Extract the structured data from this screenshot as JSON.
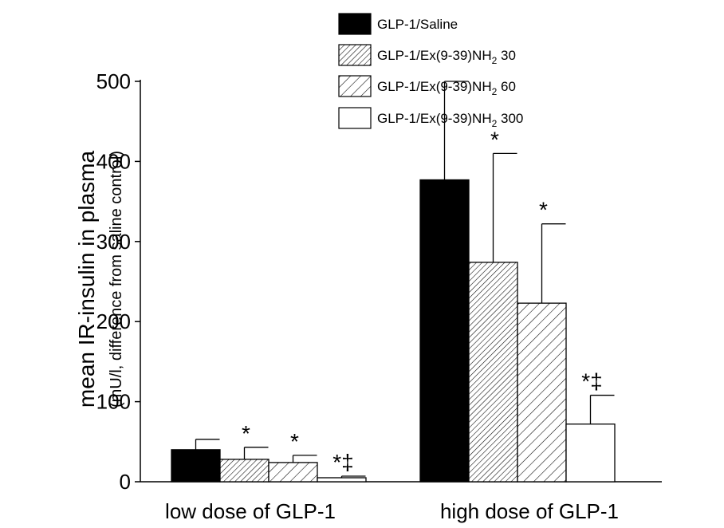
{
  "chart_data": {
    "type": "bar",
    "title": "",
    "ylabel": "mean IR-insulin in plasma",
    "ylabel_sub": "(mU/l, difference from saline control)",
    "ylim": [
      0,
      500
    ],
    "yticks": [
      0,
      100,
      200,
      300,
      400,
      500
    ],
    "categories": [
      "low dose of GLP-1",
      "high dose of GLP-1"
    ],
    "series": [
      {
        "name": "GLP-1/Saline",
        "legend_main": "GLP-1/Saline",
        "legend_sub": "",
        "legend_tail": "",
        "pattern": "solid-black",
        "values": [
          40,
          377
        ],
        "errors": [
          13,
          123
        ]
      },
      {
        "name": "GLP-1/Ex(9-39)NH2 30",
        "legend_main": "GLP-1/Ex(9-39)NH",
        "legend_sub": "2",
        "legend_tail": " 30",
        "pattern": "dense-hatch",
        "values": [
          28,
          274
        ],
        "errors": [
          15,
          136
        ]
      },
      {
        "name": "GLP-1/Ex(9-39)NH2 60",
        "legend_main": "GLP-1/Ex(9-39)NH",
        "legend_sub": "2",
        "legend_tail": " 60",
        "pattern": "sparse-hatch",
        "values": [
          24,
          223
        ],
        "errors": [
          9,
          99
        ]
      },
      {
        "name": "GLP-1/Ex(9-39)NH2 300",
        "legend_main": "GLP-1/Ex(9-39)NH",
        "legend_sub": "2",
        "legend_tail": " 300",
        "pattern": "white",
        "values": [
          5,
          72
        ],
        "errors": [
          2,
          36
        ]
      }
    ],
    "annotations": [
      [
        [],
        [
          "*"
        ],
        [
          "*"
        ],
        [
          "*",
          "‡"
        ]
      ],
      [
        [],
        [
          "*"
        ],
        [
          "*"
        ],
        [
          "*",
          "‡"
        ]
      ]
    ],
    "colors": {
      "solid": "#000000",
      "outline": "#000000",
      "background": "#ffffff"
    }
  }
}
